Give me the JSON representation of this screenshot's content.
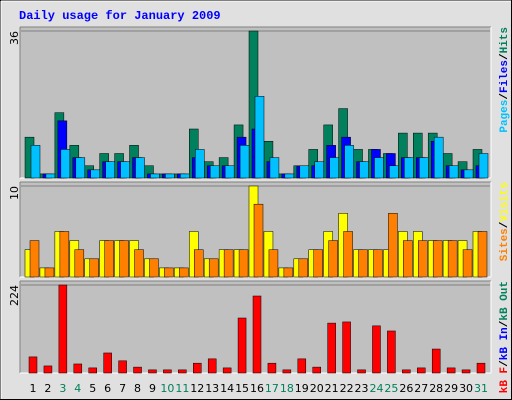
{
  "legend_separator": "/",
  "chart_data": [
    {
      "type": "bar",
      "title": "Daily usage for January 2009",
      "ylim": [
        0,
        36
      ],
      "yticks": [
        36
      ],
      "series": [
        {
          "name": "Pages",
          "color": "#00c0ff",
          "values": [
            8,
            1,
            7,
            5,
            2,
            4,
            4,
            5,
            1,
            1,
            1,
            7,
            3,
            3,
            8,
            20,
            5,
            1,
            3,
            4,
            5,
            8,
            4,
            5,
            3,
            5,
            5,
            10,
            3,
            2,
            6
          ]
        },
        {
          "name": "Files",
          "color": "#0000ff",
          "values": [
            0,
            1,
            14,
            5,
            2,
            4,
            4,
            5,
            1,
            1,
            1,
            5,
            3,
            3,
            10,
            12,
            4,
            1,
            3,
            3,
            8,
            10,
            4,
            7,
            6,
            5,
            5,
            9,
            3,
            2,
            3
          ]
        },
        {
          "name": "Hits",
          "color": "#00805c",
          "values": [
            10,
            1,
            16,
            8,
            3,
            6,
            6,
            8,
            3,
            1,
            1,
            12,
            4,
            5,
            13,
            36,
            9,
            1,
            3,
            7,
            13,
            17,
            7,
            7,
            6,
            11,
            11,
            11,
            6,
            4,
            7
          ]
        }
      ]
    },
    {
      "type": "bar",
      "ylim": [
        0,
        10
      ],
      "yticks": [
        10
      ],
      "series": [
        {
          "name": "Sites",
          "color": "#ff8000",
          "values": [
            4,
            1,
            5,
            3,
            2,
            4,
            4,
            3,
            2,
            1,
            1,
            3,
            2,
            3,
            3,
            8,
            3,
            1,
            2,
            3,
            4,
            5,
            3,
            3,
            7,
            4,
            4,
            4,
            4,
            3,
            5
          ]
        },
        {
          "name": "Visits",
          "color": "#ffff00",
          "values": [
            3,
            1,
            5,
            4,
            2,
            4,
            4,
            4,
            2,
            1,
            1,
            5,
            2,
            3,
            3,
            10,
            5,
            1,
            2,
            3,
            5,
            7,
            3,
            3,
            3,
            5,
            5,
            4,
            4,
            4,
            5
          ]
        }
      ]
    },
    {
      "type": "bar",
      "ylim": [
        0,
        224
      ],
      "yticks": [
        224
      ],
      "categories": [
        "1",
        "2",
        "3",
        "4",
        "5",
        "6",
        "7",
        "8",
        "9",
        "10",
        "11",
        "12",
        "13",
        "14",
        "15",
        "16",
        "17",
        "18",
        "19",
        "20",
        "21",
        "22",
        "23",
        "24",
        "25",
        "26",
        "27",
        "28",
        "29",
        "30",
        "31"
      ],
      "category_colors": [
        "#000000",
        "#000000",
        "#00805c",
        "#00805c",
        "#000000",
        "#000000",
        "#000000",
        "#000000",
        "#000000",
        "#00805c",
        "#00805c",
        "#000000",
        "#000000",
        "#000000",
        "#000000",
        "#000000",
        "#00805c",
        "#00805c",
        "#000000",
        "#000000",
        "#000000",
        "#000000",
        "#000000",
        "#00805c",
        "#00805c",
        "#000000",
        "#000000",
        "#000000",
        "#000000",
        "#000000",
        "#00805c"
      ],
      "series": [
        {
          "name": "kB F",
          "color": "#ff0000",
          "values": [
            41,
            18,
            224,
            23,
            13,
            51,
            31,
            15,
            8,
            8,
            8,
            25,
            36,
            13,
            140,
            196,
            25,
            8,
            36,
            15,
            127,
            130,
            8,
            120,
            107,
            8,
            13,
            61,
            13,
            8,
            25
          ]
        }
      ],
      "legend_extra": [
        {
          "name": "kB In",
          "color": "#0000ff"
        },
        {
          "name": "kB Out",
          "color": "#00805c"
        }
      ]
    }
  ]
}
